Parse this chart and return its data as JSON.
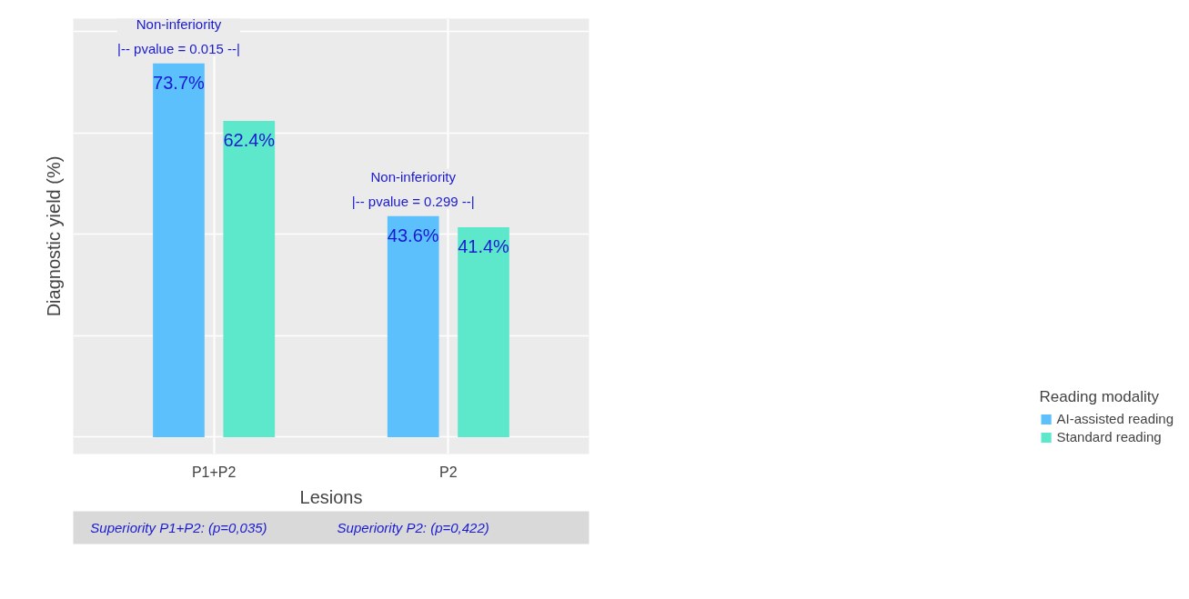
{
  "chart_data": {
    "type": "bar",
    "xlabel": "Lesions",
    "ylabel": "Diagnostic yield (%)",
    "legend_title": "Reading modality",
    "categories": [
      "P1+P2",
      "P2"
    ],
    "series": [
      {
        "name": "AI-assisted reading",
        "color": "#5bc0fb",
        "values": [
          73.7,
          43.6
        ],
        "value_labels": [
          "73.7%",
          "43.6%"
        ]
      },
      {
        "name": "Standard reading",
        "color": "#5de8cc",
        "values": [
          62.4,
          41.4
        ],
        "value_labels": [
          "62.4%",
          "41.4%"
        ]
      }
    ],
    "annotations": [
      "Non-inferiority\n|-- pvalue = 0.015 --|",
      "Non-inferiority\n|-- pvalue = 0.299 --|",
      "Superiority P1+P2: (p=0,035)",
      "Superiority P2: (p=0,422)"
    ],
    "grid": true,
    "tick_labels": "x",
    "legend": "bottom right"
  }
}
